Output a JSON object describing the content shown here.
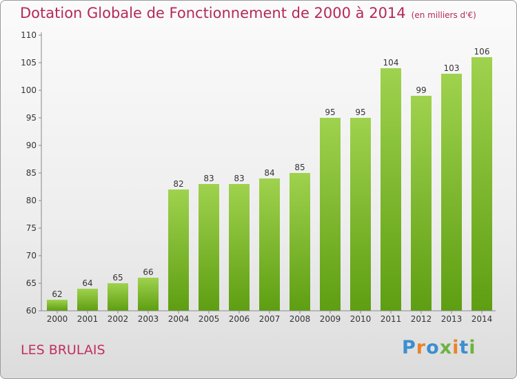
{
  "chart_data": {
    "type": "bar",
    "title": "Dotation Globale de Fonctionnement de 2000 à 2014",
    "subtitle": "(en milliers d'€)",
    "categories": [
      "2000",
      "2001",
      "2002",
      "2003",
      "2004",
      "2005",
      "2006",
      "2007",
      "2008",
      "2009",
      "2010",
      "2011",
      "2012",
      "2013",
      "2014"
    ],
    "values": [
      62,
      64,
      65,
      66,
      82,
      83,
      83,
      84,
      85,
      95,
      95,
      104,
      99,
      103,
      106
    ],
    "ylim": [
      60,
      110
    ],
    "yticks": [
      60,
      65,
      70,
      75,
      80,
      85,
      90,
      95,
      100,
      105,
      110
    ],
    "grid": false,
    "colors": {
      "bar_top": "#9fd24e",
      "bar_bottom": "#5e9e12",
      "title": "#b5285a"
    }
  },
  "commune": "LES BRULAIS",
  "brand": {
    "name": "Proxiti"
  }
}
